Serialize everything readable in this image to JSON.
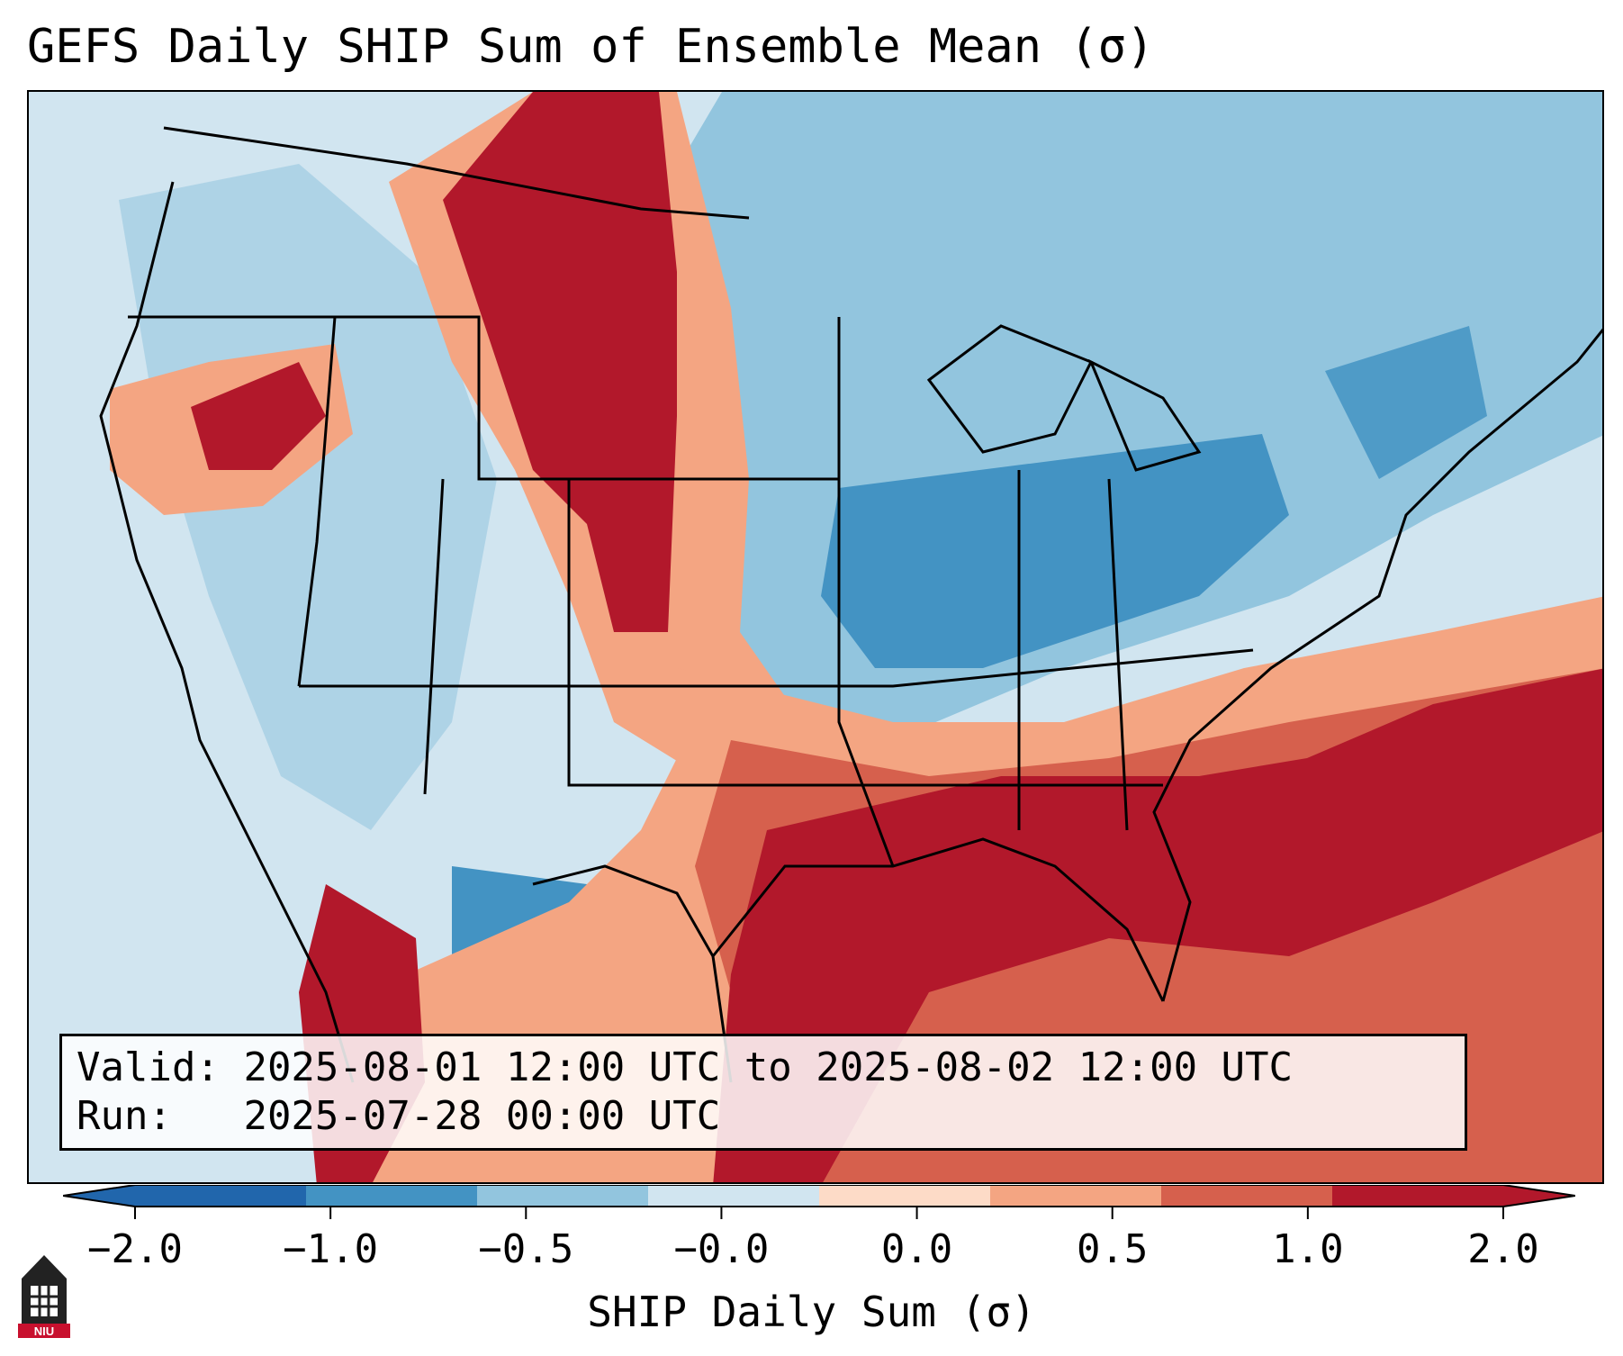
{
  "title": "GEFS Daily SHIP Sum of Ensemble Mean (σ)",
  "info": {
    "valid_label": "Valid:",
    "valid_value": "2025-08-01 12:00 UTC to 2025-08-02 12:00 UTC",
    "run_label": "Run:",
    "run_value": "2025-07-28 00:00 UTC"
  },
  "colorbar": {
    "label": "SHIP Daily Sum (σ)",
    "ticks": [
      "−2.0",
      "−1.0",
      "−0.5",
      "−0.0",
      "0.0",
      "0.5",
      "1.0",
      "2.0"
    ],
    "colors": [
      "#2166ac",
      "#4393c3",
      "#92c5de",
      "#d1e5f0",
      "#fddbc7",
      "#f4a582",
      "#d6604d",
      "#b2182b"
    ]
  },
  "logo_text": "NIU",
  "palette": {
    "strong_negative": "#4393c3",
    "negative": "#92c5de",
    "weak_negative": "#d1e5f0",
    "weak_positive": "#fddbc7",
    "positive": "#f4a582",
    "strong_positive": "#d6604d",
    "extreme_positive": "#b2182b",
    "boundary_line": "#000000"
  }
}
